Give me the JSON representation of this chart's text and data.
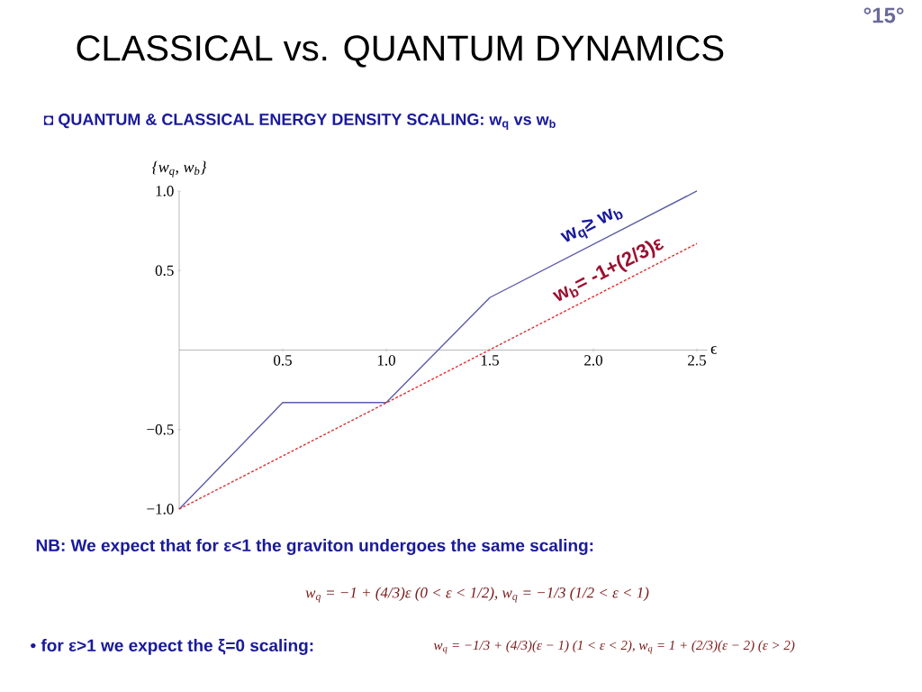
{
  "chart_data": {
    "type": "line",
    "title": "CLASSICAL vs. QUANTUM DYNAMICS",
    "subtitle": "◘ QUANTUM & CLASSICAL ENERGY DENSITY SCALING: w$_{q}$ vs w$_{b}$",
    "xlabel": "ϵ",
    "ylabel": "{w$_{q}$, w$_{b}$}",
    "series": [
      {
        "color": "#5b5ba8",
        "line_style": "solid",
        "x": [
          0,
          0.5,
          1.0,
          1.5,
          2.5
        ],
        "values": [
          -1.0,
          -0.33,
          -0.33,
          0.33,
          1.0
        ]
      },
      {
        "color": "#e03030",
        "line_style": "dotted",
        "x": [
          0,
          2.5
        ],
        "values": [
          -1.0,
          0.67
        ]
      }
    ],
    "xlim": [
      0,
      2.55
    ],
    "ylim": [
      -1.0,
      1.0
    ],
    "xticks": [
      {
        "value": 0.5,
        "label": "0.5"
      },
      {
        "value": 1.0,
        "label": "1.0"
      },
      {
        "value": 1.5,
        "label": "1.5"
      },
      {
        "value": 2.0,
        "label": "2.0"
      },
      {
        "value": 2.5,
        "label": "2.5"
      }
    ],
    "yticks": [
      {
        "value": -1.0,
        "label": "−1.0"
      },
      {
        "value": -0.5,
        "label": "−0.5"
      },
      {
        "value": 0.5,
        "label": "0.5"
      },
      {
        "value": 1.0,
        "label": "1.0"
      }
    ],
    "annotations": [
      "°15°",
      "w$_{q}$≥ w$_{b}$",
      "w$_{b}$= -1+(2/3)ε",
      "NB: We expect that for ε<1 the graviton undergoes the same scaling:",
      "w$_{q}$ = −1 + (4/3)ε    (0 < ε < 1/2),    w$_{q}$ = −1/3    (1/2 < ε < 1)",
      "• for ε>1 we expect the ξ=0 scaling:",
      "w$_{q}$ = −1/3 + (4/3)(ε − 1)    (1 < ε < 2),    w$_{q}$ = 1 + (2/3)(ε − 2)    (ε > 2)"
    ]
  }
}
